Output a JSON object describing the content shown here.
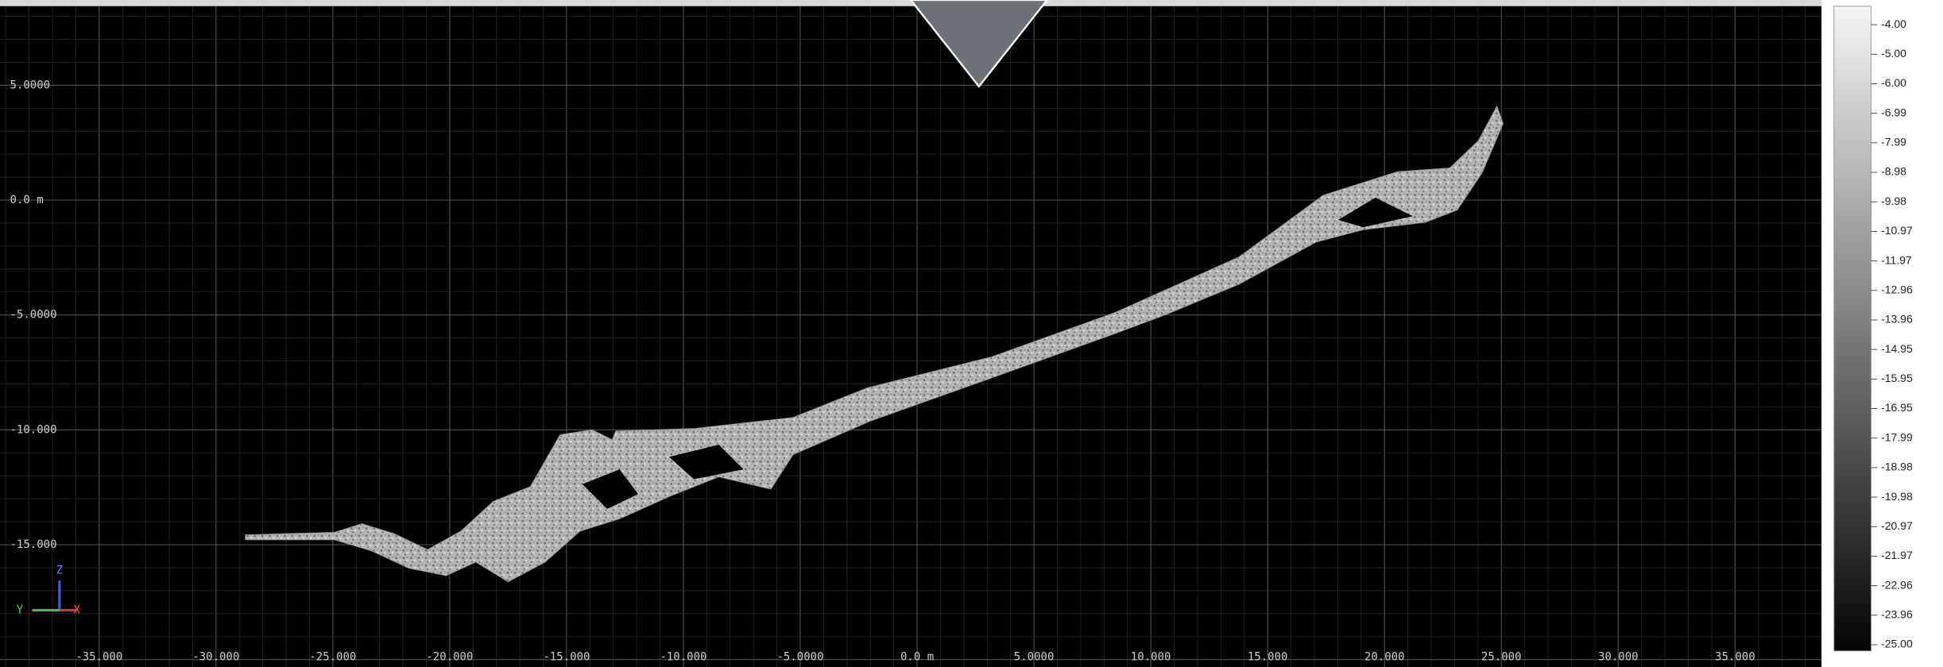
{
  "viewport": {
    "x_labels": [
      "-35.000",
      "-30.000",
      "-25.000",
      "-20.000",
      "-15.000",
      "-10.000",
      "-5.0000",
      "0.0 m",
      "5.0000",
      "10.000",
      "15.000",
      "20.000",
      "25.000",
      "30.000",
      "35.000"
    ],
    "y_labels": [
      "5.0000",
      "0.0 m",
      "-5.0000",
      "-10.000",
      "-15.000"
    ],
    "axis_triad": {
      "z": "Z",
      "y": "Y",
      "x": "X"
    }
  },
  "colorbar": {
    "labels": [
      "-4.00",
      "-5.00",
      "-6.00",
      "-6.99",
      "-7.99",
      "-8.98",
      "-9.98",
      "-10.97",
      "-11.97",
      "-12.96",
      "-13.96",
      "-14.95",
      "-15.95",
      "-16.95",
      "-17.99",
      "-18.98",
      "-19.98",
      "-20.97",
      "-21.97",
      "-22.96",
      "-23.96",
      "-25.00"
    ]
  }
}
